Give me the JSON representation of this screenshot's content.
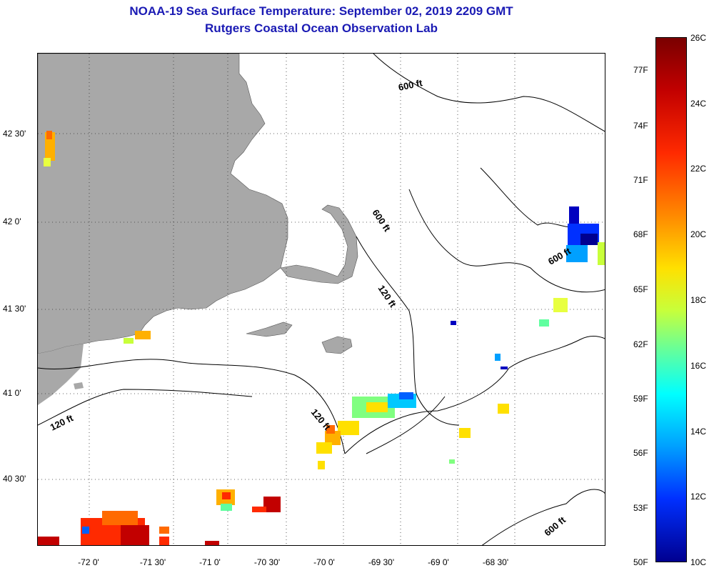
{
  "header": {
    "title": "NOAA-19 Sea Surface Temperature:  September 02, 2019 2209 GMT",
    "subtitle": "Rutgers Coastal Ocean Observation Lab"
  },
  "map": {
    "lat_labels": [
      "42 30'",
      "42 0'",
      "41 30'",
      "41 0'",
      "40 30'"
    ],
    "lon_labels": [
      "-72 0'",
      "-71 30'",
      "-71 0'",
      "-70 30'",
      "-70 0'",
      "-69 30'",
      "-69 0'",
      "-68 30'"
    ],
    "contour_labels": [
      "600 ft",
      "600 ft",
      "600 ft",
      "120 ft",
      "120 ft",
      "120 ft",
      "600 ft"
    ],
    "land_color": "#a8a8a8",
    "grid": true
  },
  "colorbar": {
    "fahrenheit": [
      "77F",
      "74F",
      "71F",
      "68F",
      "65F",
      "62F",
      "59F",
      "56F",
      "53F",
      "50F"
    ],
    "celsius": [
      "26C",
      "24C",
      "22C",
      "20C",
      "18C",
      "16C",
      "14C",
      "12C",
      "10C"
    ],
    "colors": [
      "#7a0000",
      "#ff2a00",
      "#ffe000",
      "#60ffa0",
      "#00ffff",
      "#0030ff",
      "#000090"
    ]
  }
}
